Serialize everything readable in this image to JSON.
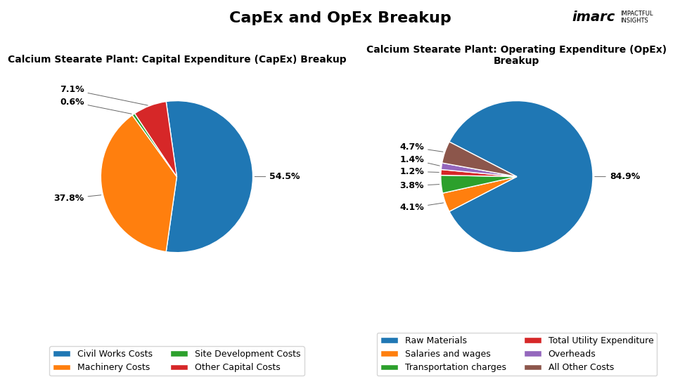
{
  "title": "CapEx and OpEx Breakup",
  "annotations": [
    "imarc",
    "IMPACTFUL\nINSIGHTS"
  ],
  "chart_data": [
    {
      "type": "pie",
      "title": "Calcium Stearate Plant: Capital Expenditure (CapEx) Breakup",
      "categories": [
        "Civil Works Costs",
        "Machinery Costs",
        "Site Development Costs",
        "Other Capital Costs"
      ],
      "values": [
        54.5,
        37.8,
        0.6,
        7.1
      ],
      "value_labels": [
        "54.5%",
        "37.8%",
        "0.6%",
        "7.1%"
      ],
      "data_labels": true,
      "legend": "lower center"
    },
    {
      "type": "pie",
      "title": "Calcium Stearate Plant: Operating Expenditure (OpEx)\nBreakup",
      "categories": [
        "Raw Materials",
        "Salaries and wages",
        "Transportation charges",
        "Total Utility Expenditure",
        "Overheads",
        "All Other Costs"
      ],
      "values": [
        84.9,
        4.1,
        3.8,
        1.2,
        1.4,
        4.7
      ],
      "value_labels": [
        "84.9%",
        "4.1%",
        "3.8%",
        "1.2%",
        "1.4%",
        "4.7%"
      ],
      "data_labels": true,
      "legend": "lower center"
    }
  ]
}
